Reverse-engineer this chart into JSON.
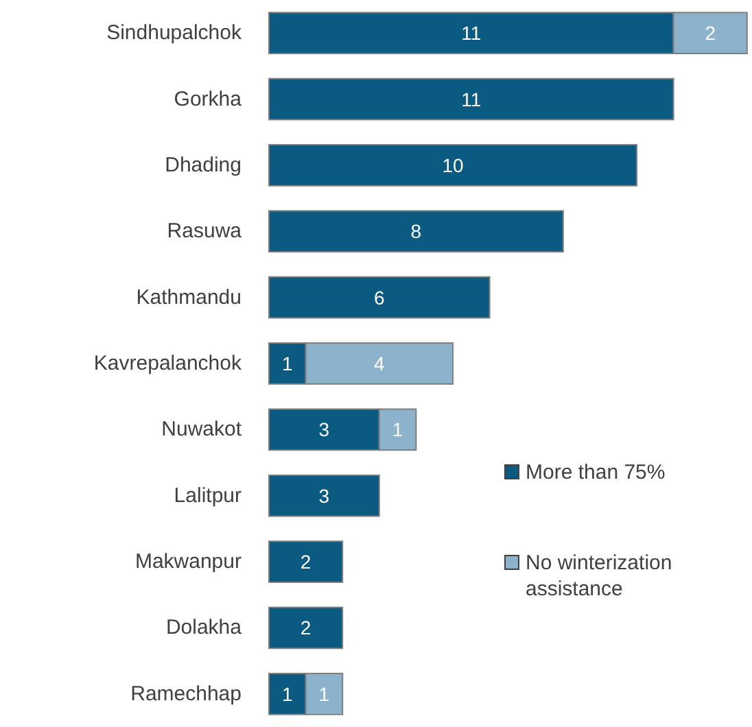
{
  "chart_data": {
    "type": "bar",
    "orientation": "horizontal",
    "stacked": true,
    "data_labels": true,
    "legend": "bottom right",
    "categories": [
      "Sindhupalchok",
      "Gorkha",
      "Dhading",
      "Rasuwa",
      "Kathmandu",
      "Kavrepalanchok",
      "Nuwakot",
      "Lalitpur",
      "Makwanpur",
      "Dolakha",
      "Ramechhap"
    ],
    "series": [
      {
        "name": "More than 75%",
        "color": "#0b5a82",
        "values": [
          11,
          11,
          10,
          8,
          6,
          1,
          3,
          3,
          2,
          2,
          1
        ]
      },
      {
        "name": "No winterization assistance",
        "color": "#8db2cb",
        "values": [
          2,
          null,
          null,
          null,
          null,
          4,
          1,
          null,
          null,
          null,
          1
        ]
      }
    ]
  }
}
